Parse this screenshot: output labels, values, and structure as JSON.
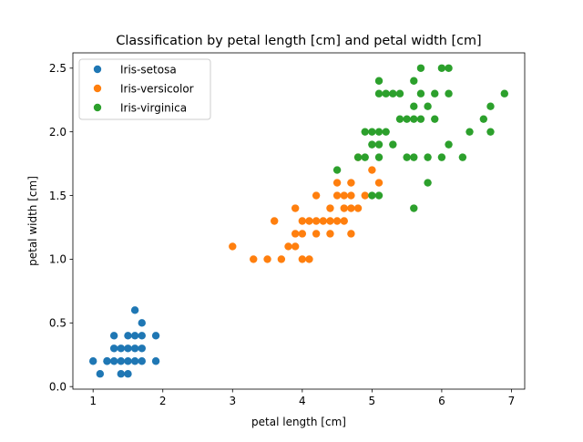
{
  "chart_data": {
    "type": "scatter",
    "title": "Classification by petal length [cm] and petal width [cm]",
    "xlabel": "petal length [cm]",
    "ylabel": "petal width [cm]",
    "xlim": [
      0.71,
      7.19
    ],
    "ylim": [
      -0.02,
      2.62
    ],
    "xticks": [
      1,
      2,
      3,
      4,
      5,
      6,
      7
    ],
    "xtick_labels": [
      "1",
      "2",
      "3",
      "4",
      "5",
      "6",
      "7"
    ],
    "yticks": [
      0.0,
      0.5,
      1.0,
      1.5,
      2.0,
      2.5
    ],
    "ytick_labels": [
      "0.0",
      "0.5",
      "1.0",
      "1.5",
      "2.0",
      "2.5"
    ],
    "grid": false,
    "legend_position": "top-left",
    "series": [
      {
        "name": "Iris-setosa",
        "color": "#1f77b4",
        "points": [
          [
            1.0,
            0.2
          ],
          [
            1.1,
            0.1
          ],
          [
            1.2,
            0.2
          ],
          [
            1.3,
            0.2
          ],
          [
            1.3,
            0.3
          ],
          [
            1.3,
            0.4
          ],
          [
            1.4,
            0.1
          ],
          [
            1.4,
            0.2
          ],
          [
            1.4,
            0.3
          ],
          [
            1.5,
            0.1
          ],
          [
            1.5,
            0.2
          ],
          [
            1.5,
            0.4
          ],
          [
            1.6,
            0.2
          ],
          [
            1.6,
            0.4
          ],
          [
            1.6,
            0.6
          ],
          [
            1.7,
            0.2
          ],
          [
            1.7,
            0.3
          ],
          [
            1.7,
            0.4
          ],
          [
            1.7,
            0.5
          ],
          [
            1.9,
            0.2
          ],
          [
            1.9,
            0.4
          ],
          [
            1.2,
            0.2
          ],
          [
            1.5,
            0.3
          ],
          [
            1.6,
            0.3
          ]
        ]
      },
      {
        "name": "Iris-versicolor",
        "color": "#ff7f0e",
        "points": [
          [
            3.0,
            1.1
          ],
          [
            3.3,
            1.0
          ],
          [
            3.5,
            1.0
          ],
          [
            3.6,
            1.3
          ],
          [
            3.7,
            1.0
          ],
          [
            3.8,
            1.1
          ],
          [
            3.9,
            1.1
          ],
          [
            3.9,
            1.2
          ],
          [
            3.9,
            1.4
          ],
          [
            4.0,
            1.0
          ],
          [
            4.0,
            1.2
          ],
          [
            4.0,
            1.3
          ],
          [
            4.1,
            1.0
          ],
          [
            4.1,
            1.3
          ],
          [
            4.2,
            1.2
          ],
          [
            4.2,
            1.3
          ],
          [
            4.2,
            1.5
          ],
          [
            4.3,
            1.3
          ],
          [
            4.4,
            1.2
          ],
          [
            4.4,
            1.3
          ],
          [
            4.4,
            1.4
          ],
          [
            4.5,
            1.3
          ],
          [
            4.5,
            1.5
          ],
          [
            4.5,
            1.6
          ],
          [
            4.6,
            1.3
          ],
          [
            4.6,
            1.4
          ],
          [
            4.6,
            1.5
          ],
          [
            4.7,
            1.2
          ],
          [
            4.7,
            1.4
          ],
          [
            4.7,
            1.5
          ],
          [
            4.7,
            1.6
          ],
          [
            4.8,
            1.4
          ],
          [
            4.8,
            1.8
          ],
          [
            4.9,
            1.5
          ],
          [
            5.0,
            1.7
          ],
          [
            5.1,
            1.6
          ]
        ]
      },
      {
        "name": "Iris-virginica",
        "color": "#2ca02c",
        "points": [
          [
            4.5,
            1.7
          ],
          [
            4.8,
            1.8
          ],
          [
            4.9,
            1.8
          ],
          [
            4.9,
            2.0
          ],
          [
            5.0,
            1.5
          ],
          [
            5.0,
            1.9
          ],
          [
            5.0,
            2.0
          ],
          [
            5.1,
            1.5
          ],
          [
            5.1,
            1.8
          ],
          [
            5.1,
            1.9
          ],
          [
            5.1,
            2.0
          ],
          [
            5.1,
            2.3
          ],
          [
            5.1,
            2.4
          ],
          [
            5.2,
            2.0
          ],
          [
            5.2,
            2.3
          ],
          [
            5.3,
            1.9
          ],
          [
            5.3,
            2.3
          ],
          [
            5.4,
            2.1
          ],
          [
            5.4,
            2.3
          ],
          [
            5.5,
            1.8
          ],
          [
            5.5,
            2.1
          ],
          [
            5.6,
            1.4
          ],
          [
            5.6,
            1.8
          ],
          [
            5.6,
            2.1
          ],
          [
            5.6,
            2.2
          ],
          [
            5.6,
            2.4
          ],
          [
            5.7,
            2.1
          ],
          [
            5.7,
            2.3
          ],
          [
            5.7,
            2.5
          ],
          [
            5.8,
            1.6
          ],
          [
            5.8,
            1.8
          ],
          [
            5.8,
            2.2
          ],
          [
            5.9,
            2.1
          ],
          [
            5.9,
            2.3
          ],
          [
            6.0,
            1.8
          ],
          [
            6.0,
            2.5
          ],
          [
            6.1,
            1.9
          ],
          [
            6.1,
            2.3
          ],
          [
            6.1,
            2.5
          ],
          [
            6.3,
            1.8
          ],
          [
            6.4,
            2.0
          ],
          [
            6.6,
            2.1
          ],
          [
            6.7,
            2.0
          ],
          [
            6.7,
            2.2
          ],
          [
            6.9,
            2.3
          ]
        ]
      }
    ]
  }
}
